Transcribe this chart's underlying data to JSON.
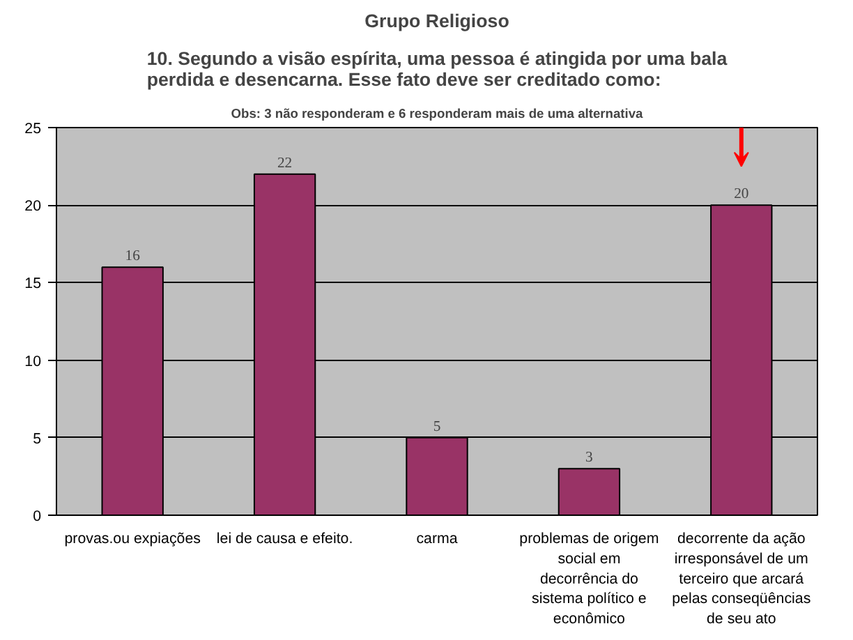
{
  "chart_data": {
    "type": "bar",
    "title": "Grupo Religioso",
    "subtitle": "10. Segundo a visão espírita, uma pessoa é atingida por uma bala perdida e desencarna. Esse fato deve ser creditado como:",
    "annotations": [
      "Obs: 3 não responderam e 6 responderam mais de uma alternativa"
    ],
    "categories": [
      "provas.ou expiações",
      "lei de causa e efeito.",
      "carma",
      "problemas de origem social em decorrência do sistema político e econômico",
      "decorrente da ação irresponsável de um terceiro que arcará pelas conseqüências de seu ato"
    ],
    "values": [
      16,
      22,
      5,
      3,
      20
    ],
    "color": "#993366",
    "ylim": [
      0,
      25
    ],
    "yticks": [
      0,
      5,
      10,
      15,
      20,
      25
    ],
    "grid": "y",
    "data_labels": true
  }
}
